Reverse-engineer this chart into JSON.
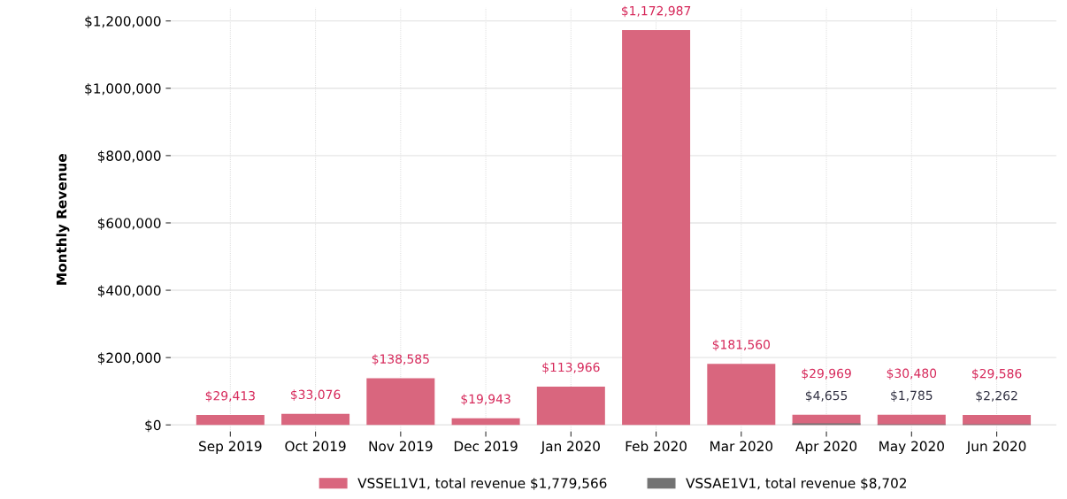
{
  "chart_data": {
    "type": "bar",
    "ylabel": "Monthly Revenue",
    "categories": [
      "Sep 2019",
      "Oct 2019",
      "Nov 2019",
      "Dec 2019",
      "Jan 2020",
      "Feb 2020",
      "Mar 2020",
      "Apr 2020",
      "May 2020",
      "Jun 2020"
    ],
    "series": [
      {
        "name": "VSSEL1V1, total revenue $1,779,566",
        "color": "#d9667e",
        "values": [
          29413,
          33076,
          138585,
          19943,
          113966,
          1172987,
          181560,
          29969,
          30480,
          29586
        ],
        "value_labels": [
          "$29,413",
          "$33,076",
          "$138,585",
          "$19,943",
          "$113,966",
          "$1,172,987",
          "$181,560",
          "$29,969",
          "$30,480",
          "$29,586"
        ]
      },
      {
        "name": "VSSAE1V1, total revenue $8,702",
        "color": "#737373",
        "values": [
          null,
          null,
          null,
          null,
          null,
          null,
          null,
          4655,
          1785,
          2262
        ],
        "value_labels": [
          null,
          null,
          null,
          null,
          null,
          null,
          null,
          "$4,655",
          "$1,785",
          "$2,262"
        ]
      }
    ],
    "ylim": [
      -20000,
      1240000
    ],
    "yticks": [
      {
        "value": 0,
        "label": "$0"
      },
      {
        "value": 200000,
        "label": "$200,000"
      },
      {
        "value": 400000,
        "label": "$400,000"
      },
      {
        "value": 600000,
        "label": "$600,000"
      },
      {
        "value": 800000,
        "label": "$800,000"
      },
      {
        "value": 1000000,
        "label": "$1,000,000"
      },
      {
        "value": 1200000,
        "label": "$1,200,000"
      }
    ],
    "grid": true,
    "legend": "bottom"
  }
}
